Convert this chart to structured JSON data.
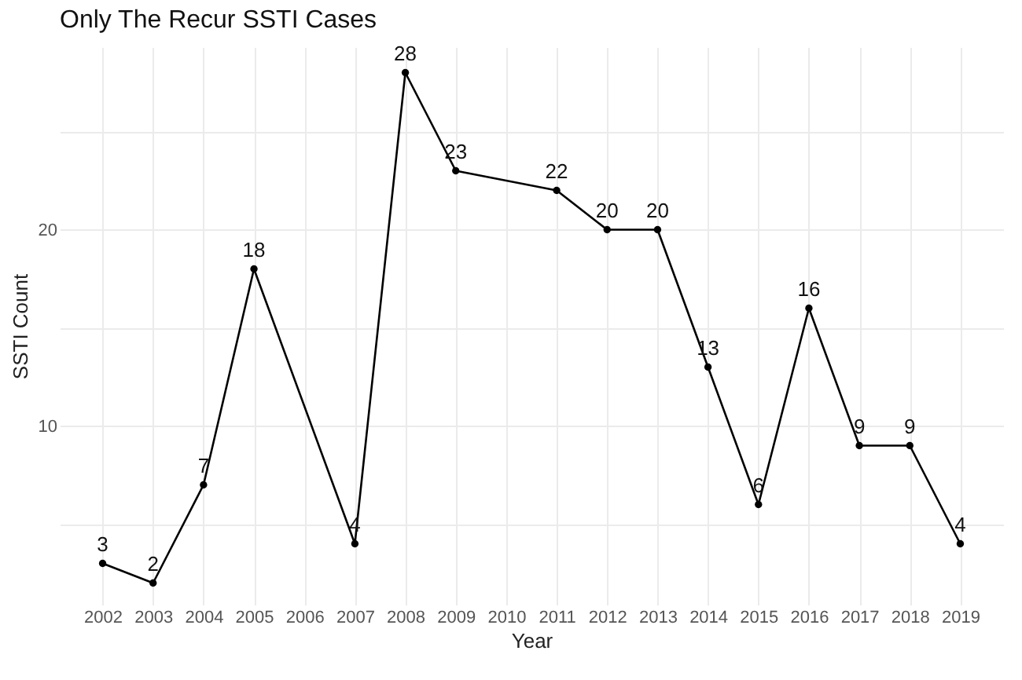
{
  "chart_data": {
    "type": "line",
    "title": "Only The Recur SSTI Cases",
    "xlabel": "Year",
    "ylabel": "SSTI Count",
    "x": [
      2002,
      2003,
      2004,
      2005,
      2007,
      2008,
      2009,
      2011,
      2012,
      2013,
      2014,
      2015,
      2016,
      2017,
      2018,
      2019
    ],
    "series": [
      {
        "color": "#000000",
        "values": [
          3,
          2,
          7,
          18,
          4,
          28,
          23,
          22,
          20,
          20,
          13,
          6,
          16,
          9,
          9,
          4
        ]
      }
    ],
    "xlim": [
      2001.15,
      2019.85
    ],
    "xticks": [
      2002,
      2003,
      2004,
      2005,
      2006,
      2007,
      2008,
      2009,
      2010,
      2011,
      2012,
      2013,
      2014,
      2015,
      2016,
      2017,
      2018,
      2019
    ],
    "ylim": [
      0.9,
      29.3
    ],
    "yticks": [
      {
        "value": 5,
        "label": null
      },
      10,
      {
        "value": 15,
        "label": null
      },
      20,
      {
        "value": 25,
        "label": null
      }
    ],
    "grid": true,
    "marker": "circle",
    "line_style": "solid",
    "data_labels": true
  }
}
